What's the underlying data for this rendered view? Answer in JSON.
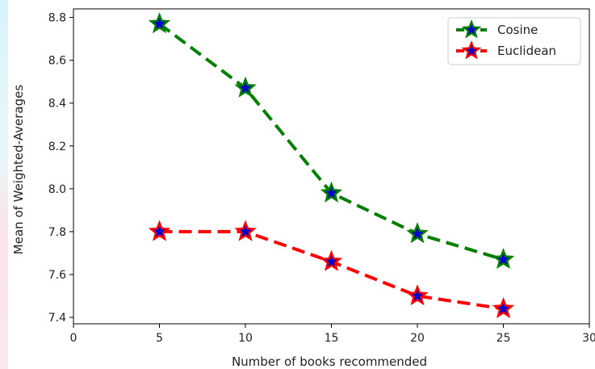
{
  "chart_data": {
    "type": "line",
    "title": "",
    "xlabel": "Number of books recommended",
    "ylabel": "Mean of Weighted-Averages",
    "xlim": [
      0,
      30
    ],
    "ylim": [
      7.37,
      8.84
    ],
    "xticks": [
      0,
      5,
      10,
      15,
      20,
      25,
      30
    ],
    "yticks": [
      7.4,
      7.6,
      7.8,
      8.0,
      8.2,
      8.4,
      8.6,
      8.8
    ],
    "xtick_labels": [
      "0",
      "5",
      "10",
      "15",
      "20",
      "25",
      "30"
    ],
    "ytick_labels": [
      "7.4",
      "7.6",
      "7.8",
      "8.0",
      "8.2",
      "8.4",
      "8.6",
      "8.8"
    ],
    "x": [
      5,
      10,
      15,
      20,
      25
    ],
    "series": [
      {
        "name": "Cosine",
        "values": [
          8.77,
          8.47,
          7.98,
          7.79,
          7.67
        ],
        "color": "#008000",
        "marker_fill": "#0000cc",
        "linestyle": "dashed",
        "marker": "star"
      },
      {
        "name": "Euclidean",
        "values": [
          7.8,
          7.8,
          7.66,
          7.5,
          7.44
        ],
        "color": "#ff0000",
        "marker_fill": "#0000cc",
        "linestyle": "dashed",
        "marker": "star"
      }
    ],
    "grid": false,
    "legend": "top-right"
  }
}
